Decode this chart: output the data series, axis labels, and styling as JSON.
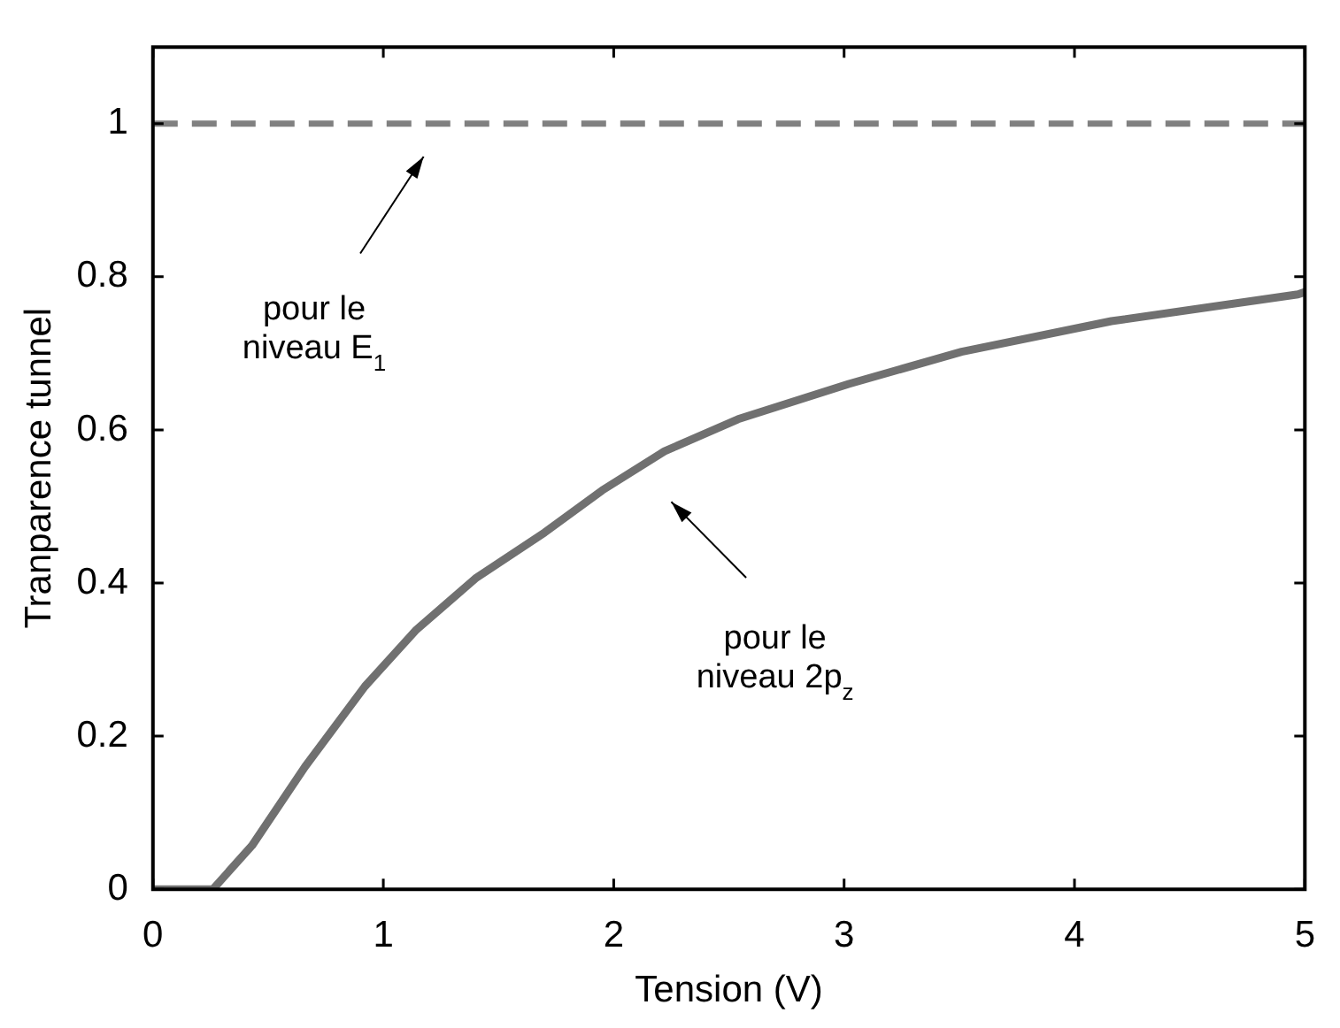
{
  "chart_data": {
    "type": "line",
    "xlabel": "Tension (V)",
    "ylabel": "Tranparence tunnel",
    "xlim": [
      0,
      5
    ],
    "xticks": [
      0,
      1,
      2,
      3,
      4,
      5
    ],
    "ylim": [
      0,
      1.1
    ],
    "yticks": [
      0,
      0.2,
      0.4,
      0.6,
      0.8,
      1
    ],
    "series": [
      {
        "color": "#808080",
        "line_style": "dashed",
        "x": [
          0,
          5
        ],
        "values": [
          1,
          1
        ]
      },
      {
        "color": "#707070",
        "line_style": "solid",
        "x": [
          0,
          0.08,
          0.26,
          0.43,
          0.66,
          0.92,
          1.14,
          1.4,
          1.7,
          1.95,
          2.22,
          2.54,
          3.02,
          3.51,
          4.16,
          4.97,
          5
        ],
        "values": [
          0,
          0,
          0,
          0.057,
          0.16,
          0.265,
          0.338,
          0.406,
          0.466,
          0.521,
          0.572,
          0.614,
          0.66,
          0.702,
          0.742,
          0.777,
          0.78
        ]
      }
    ],
    "annotations": [
      "pour le\nniveau E$_{1}$",
      "pour le\nniveau 2p$_{z}$"
    ]
  }
}
